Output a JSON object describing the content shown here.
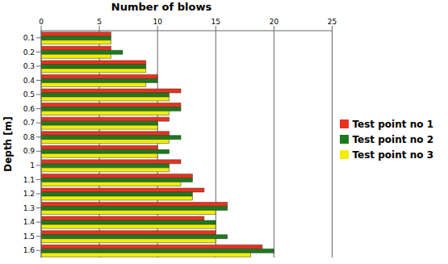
{
  "chart_data": {
    "type": "bar",
    "orientation": "horizontal",
    "title": "Number of blows",
    "ylabel": "Depth [m]",
    "categories": [
      "0.1",
      "0.2",
      "0.3",
      "0.4",
      "0.5",
      "0.6",
      "0.7",
      "0.8",
      "0.9",
      "1",
      "1.1",
      "1.2",
      "1.3",
      "1.4",
      "1.5",
      "1.6"
    ],
    "series": [
      {
        "name": "Test point no 1",
        "color": "#e8321e",
        "values": [
          6,
          6,
          9,
          10,
          12,
          12,
          11,
          11,
          10,
          12,
          13,
          14,
          16,
          14,
          15,
          19
        ]
      },
      {
        "name": "Test point no 2",
        "color": "#1c7a1c",
        "values": [
          6,
          7,
          9,
          10,
          11,
          12,
          10,
          12,
          11,
          11,
          13,
          13,
          16,
          15,
          16,
          20
        ]
      },
      {
        "name": "Test point no 3",
        "color": "#f2ee00",
        "values": [
          6,
          6,
          9,
          9,
          11,
          11,
          10,
          11,
          10,
          11,
          12,
          13,
          15,
          15,
          15,
          18
        ]
      }
    ],
    "xlim": [
      0,
      25
    ],
    "xticks": [
      0,
      5,
      10,
      15,
      20,
      25
    ],
    "grid": true,
    "legend": "right"
  }
}
